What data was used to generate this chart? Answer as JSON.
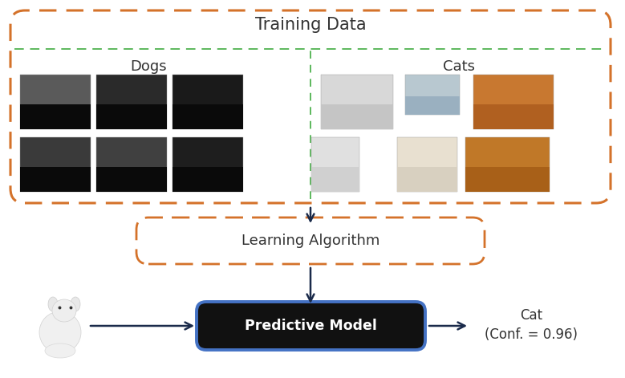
{
  "title": "Training Data",
  "dogs_label": "Dogs",
  "cats_label": "Cats",
  "learning_algo_label": "Learning Algorithm",
  "predictive_model_label": "Predictive Model",
  "output_line1": "Cat",
  "output_line2": "(Conf. = 0.96)",
  "outer_box_color": "#D4722A",
  "green_line_color": "#5CB85C",
  "learning_algo_box_color": "#D4722A",
  "predictive_model_box_color": "#111111",
  "predictive_model_border_color": "#4472C4",
  "arrow_color": "#1a2a4a",
  "bg_color": "#ffffff",
  "text_color": "#333333",
  "title_fontsize": 15,
  "label_fontsize": 13,
  "model_text_color": "#ffffff",
  "output_text_color": "#333333",
  "dog_colors": [
    [
      "#5a5a5a",
      "#2a2a2a",
      "#1a1a1a"
    ],
    [
      "#3a3a3a",
      "#404040",
      "#1e1e1e"
    ]
  ],
  "cat_row1": [
    [
      "#d8d8d8",
      "#c5c5c5"
    ],
    [
      "#b8c8d0",
      "#9ab0c0"
    ],
    [
      "#c87830",
      "#b06020"
    ]
  ],
  "cat_row2": [
    [
      "#e0e0e0",
      "#d0d0d0"
    ],
    [
      "#e8e0d0",
      "#d8d0c0"
    ],
    [
      "#c07828",
      "#a86018"
    ]
  ]
}
